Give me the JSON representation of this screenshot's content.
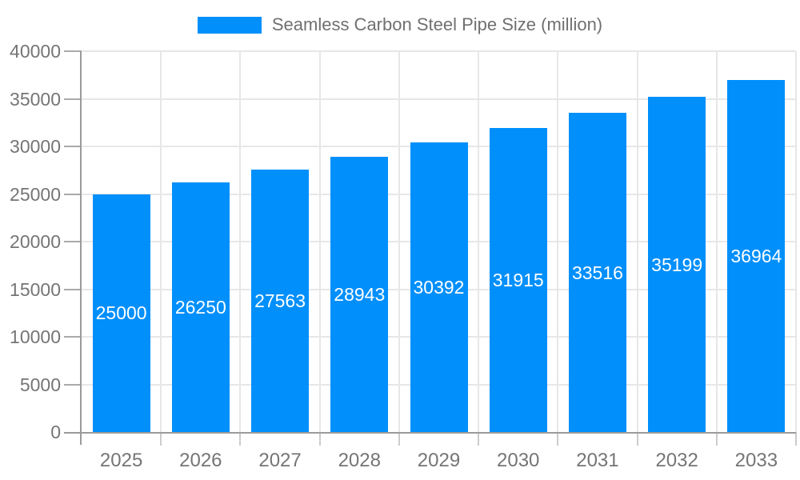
{
  "chart": {
    "legend": {
      "label": "Seamless Carbon Steel Pipe Size (million)"
    }
  },
  "colors": {
    "bar": "#008ffb",
    "bar_label": "#ffffff",
    "axis_line": "#9b9b9b",
    "y_tick": "#aaaaaa",
    "x_tick": "#cccccc",
    "grid_line": "#e7e7e7",
    "label_text": "#757575",
    "legend_text": "#707070"
  },
  "chart_data": {
    "type": "bar",
    "title": "Seamless Carbon Steel Pipe Size (million)",
    "categories": [
      "2025",
      "2026",
      "2027",
      "2028",
      "2029",
      "2030",
      "2031",
      "2032",
      "2033"
    ],
    "values": [
      25000,
      26250,
      27563,
      28943,
      30392,
      31915,
      33516,
      35199,
      36964
    ],
    "bar_labels": [
      "25000",
      "26250",
      "27563",
      "28943",
      "30392",
      "31915",
      "33516",
      "35199",
      "36964"
    ],
    "xlabel": "",
    "ylabel": "",
    "ylim": [
      0,
      40000
    ],
    "ytick_step": 5000,
    "ytick_labels": [
      "0",
      "5000",
      "10000",
      "15000",
      "20000",
      "25000",
      "30000",
      "35000",
      "40000"
    ],
    "grid": "horizontal-and-vertical-boundaries",
    "legend_position": "top-center",
    "value_label_position": "inside-center"
  }
}
